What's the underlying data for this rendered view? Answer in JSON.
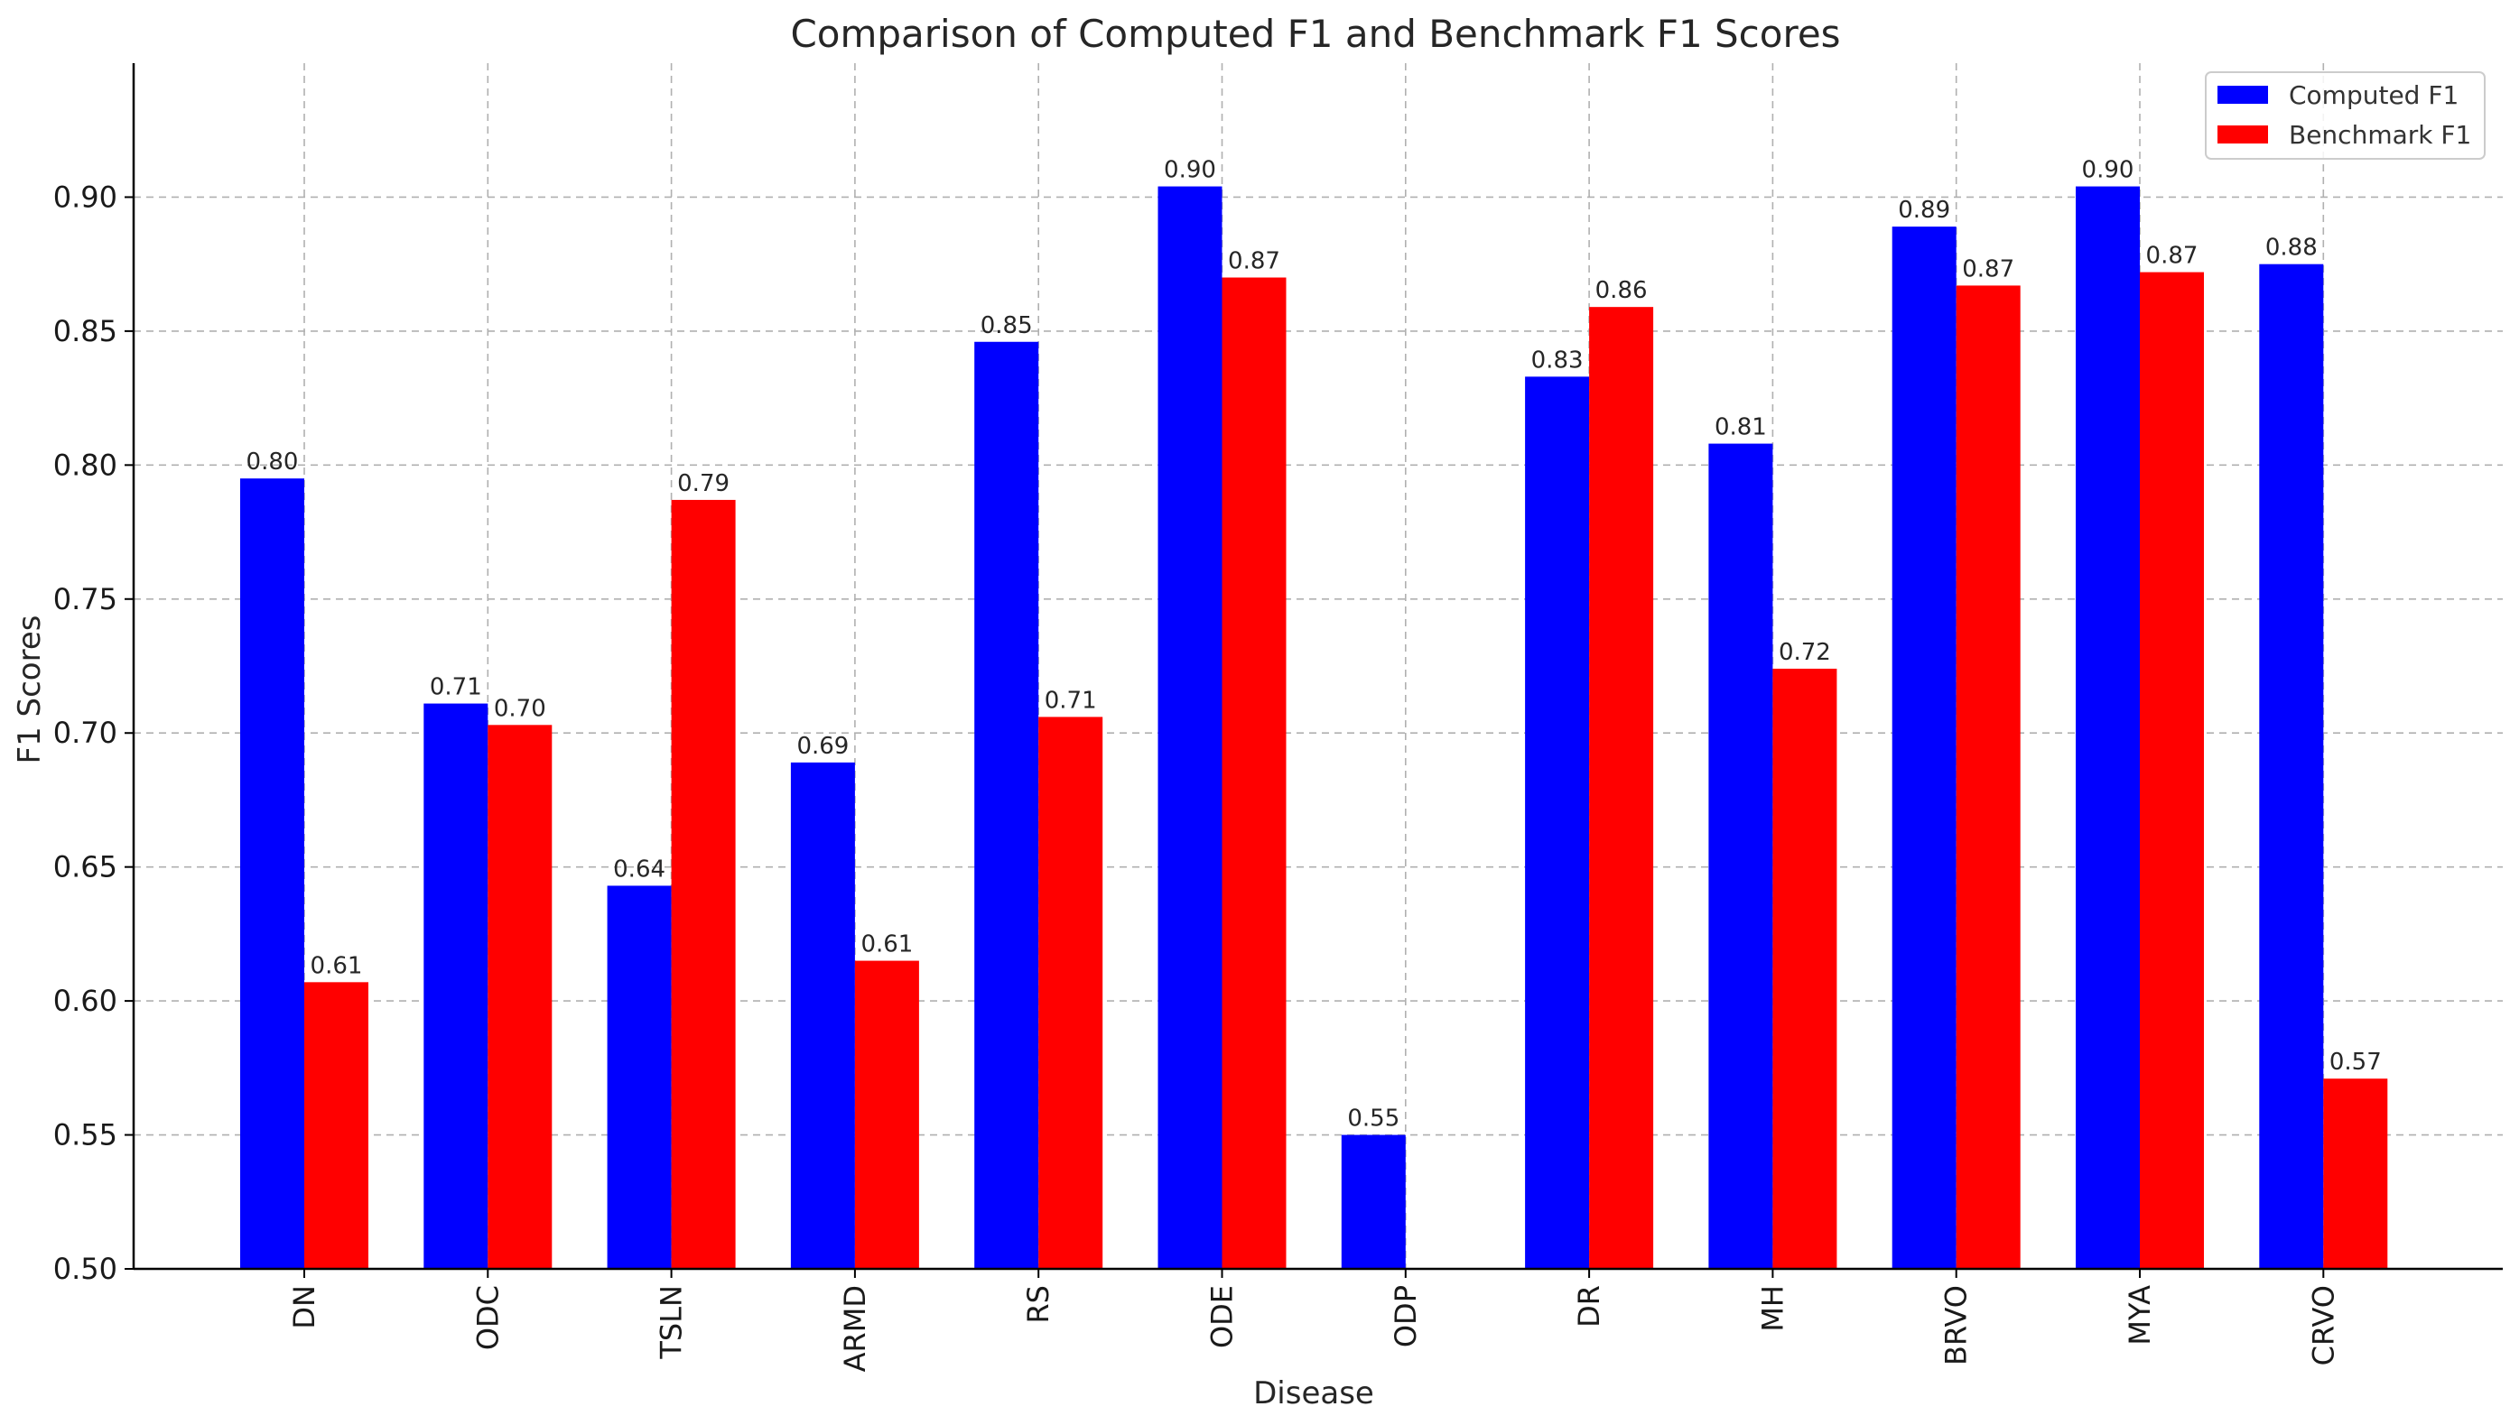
{
  "chart_data": {
    "type": "bar",
    "title": "Comparison of Computed F1 and Benchmark F1 Scores",
    "xlabel": "Disease",
    "ylabel": "F1 Scores",
    "ylim": [
      0.5,
      0.95
    ],
    "yticks": [
      0.5,
      0.55,
      0.6,
      0.65,
      0.7,
      0.75,
      0.8,
      0.85,
      0.9
    ],
    "ytick_labels": [
      "0.50",
      "0.55",
      "0.60",
      "0.65",
      "0.70",
      "0.75",
      "0.80",
      "0.85",
      "0.90"
    ],
    "categories": [
      "DN",
      "ODC",
      "TSLN",
      "ARMD",
      "RS",
      "ODE",
      "ODP",
      "DR",
      "MH",
      "BRVO",
      "MYA",
      "CRVO"
    ],
    "series": [
      {
        "name": "Computed F1",
        "color": "#0000ff",
        "values": [
          0.795,
          0.711,
          0.643,
          0.689,
          0.846,
          0.904,
          0.55,
          0.833,
          0.808,
          0.889,
          0.904,
          0.875
        ],
        "labels": [
          "0.80",
          "0.71",
          "0.64",
          "0.69",
          "0.85",
          "0.90",
          "0.55",
          "0.83",
          "0.81",
          "0.89",
          "0.90",
          "0.88"
        ]
      },
      {
        "name": "Benchmark F1",
        "color": "#ff0000",
        "values": [
          0.607,
          0.703,
          0.787,
          0.615,
          0.706,
          0.87,
          null,
          0.859,
          0.724,
          0.867,
          0.872,
          0.571
        ],
        "labels": [
          "0.61",
          "0.70",
          "0.79",
          "0.61",
          "0.71",
          "0.87",
          "",
          "0.86",
          "0.72",
          "0.87",
          "0.87",
          "0.57"
        ]
      }
    ],
    "grid": true,
    "legend_position": "top-right"
  }
}
